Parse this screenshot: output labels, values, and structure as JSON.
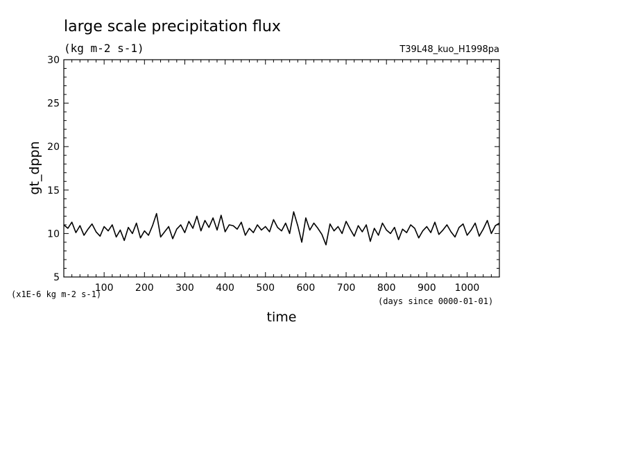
{
  "chart_data": {
    "type": "line",
    "title": "large scale precipitation flux",
    "units_label": "(kg m-2 s-1)",
    "run_label": "T39L48_kuo_H1998pa",
    "ylabel": "gt_dppn",
    "xlabel": "time",
    "y_scale_note": "(x1E-6 kg m-2 s-1)",
    "x_units_note": "(days since 0000-01-01)",
    "xlim": [
      0,
      1080
    ],
    "ylim": [
      5,
      30
    ],
    "x_ticks": [
      100,
      200,
      300,
      400,
      500,
      600,
      700,
      800,
      900,
      1000
    ],
    "y_ticks": [
      5,
      10,
      15,
      20,
      25,
      30
    ],
    "grid": false,
    "series": [
      {
        "x": [
          0,
          10,
          20,
          30,
          40,
          50,
          60,
          70,
          80,
          90,
          100,
          110,
          120,
          130,
          140,
          150,
          160,
          170,
          180,
          190,
          200,
          210,
          220,
          230,
          240,
          250,
          260,
          270,
          280,
          290,
          300,
          310,
          320,
          330,
          340,
          350,
          360,
          370,
          380,
          390,
          400,
          410,
          420,
          430,
          440,
          450,
          460,
          470,
          480,
          490,
          500,
          510,
          520,
          530,
          540,
          550,
          560,
          570,
          580,
          590,
          600,
          610,
          620,
          630,
          640,
          650,
          660,
          670,
          680,
          690,
          700,
          710,
          720,
          730,
          740,
          750,
          760,
          770,
          780,
          790,
          800,
          810,
          820,
          830,
          840,
          850,
          860,
          870,
          880,
          890,
          900,
          910,
          920,
          930,
          940,
          950,
          960,
          970,
          980,
          990,
          1000,
          1010,
          1020,
          1030,
          1040,
          1050,
          1060,
          1070,
          1080
        ],
        "y": [
          11.0,
          10.6,
          11.3,
          10.1,
          10.9,
          9.8,
          10.5,
          11.1,
          10.2,
          9.7,
          10.8,
          10.3,
          11.0,
          9.6,
          10.4,
          9.2,
          10.7,
          10.0,
          11.2,
          9.5,
          10.3,
          9.8,
          10.9,
          12.3,
          9.6,
          10.2,
          10.8,
          9.4,
          10.5,
          11.0,
          10.1,
          11.4,
          10.6,
          12.0,
          10.3,
          11.5,
          10.7,
          11.8,
          10.4,
          12.1,
          10.2,
          11.0,
          10.9,
          10.5,
          11.3,
          9.8,
          10.6,
          10.1,
          11.0,
          10.4,
          10.8,
          10.2,
          11.6,
          10.7,
          10.3,
          11.2,
          10.0,
          12.5,
          10.9,
          9.0,
          11.8,
          10.4,
          11.2,
          10.6,
          9.9,
          8.7,
          11.1,
          10.3,
          10.8,
          10.0,
          11.4,
          10.5,
          9.7,
          10.9,
          10.2,
          11.0,
          9.1,
          10.6,
          9.8,
          11.2,
          10.4,
          10.0,
          10.7,
          9.3,
          10.5,
          10.1,
          11.0,
          10.6,
          9.5,
          10.3,
          10.8,
          10.1,
          11.3,
          9.9,
          10.4,
          11.0,
          10.2,
          9.6,
          10.7,
          11.1,
          9.8,
          10.4,
          11.2,
          9.7,
          10.5,
          11.5,
          10.0,
          10.9,
          11.2
        ]
      }
    ]
  }
}
